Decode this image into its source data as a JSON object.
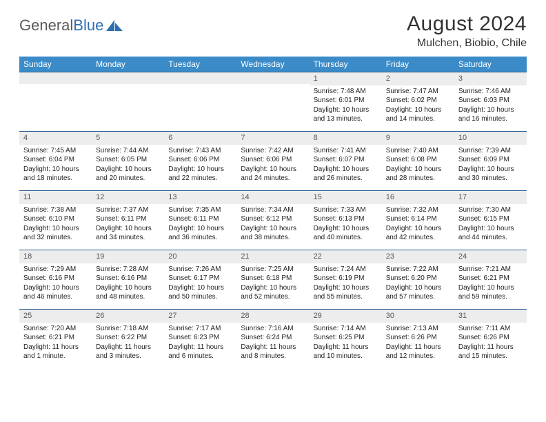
{
  "brand": {
    "name_gray": "General",
    "name_blue": "Blue"
  },
  "title": "August 2024",
  "location": "Mulchen, Biobio, Chile",
  "header_bg": "#3b8bc8",
  "header_text": "#ffffff",
  "daynum_bg": "#ededed",
  "rule_color": "#2a5d8f",
  "day_names": [
    "Sunday",
    "Monday",
    "Tuesday",
    "Wednesday",
    "Thursday",
    "Friday",
    "Saturday"
  ],
  "weeks": [
    [
      null,
      null,
      null,
      null,
      {
        "n": "1",
        "sr": "Sunrise: 7:48 AM",
        "ss": "Sunset: 6:01 PM",
        "d1": "Daylight: 10 hours",
        "d2": "and 13 minutes."
      },
      {
        "n": "2",
        "sr": "Sunrise: 7:47 AM",
        "ss": "Sunset: 6:02 PM",
        "d1": "Daylight: 10 hours",
        "d2": "and 14 minutes."
      },
      {
        "n": "3",
        "sr": "Sunrise: 7:46 AM",
        "ss": "Sunset: 6:03 PM",
        "d1": "Daylight: 10 hours",
        "d2": "and 16 minutes."
      }
    ],
    [
      {
        "n": "4",
        "sr": "Sunrise: 7:45 AM",
        "ss": "Sunset: 6:04 PM",
        "d1": "Daylight: 10 hours",
        "d2": "and 18 minutes."
      },
      {
        "n": "5",
        "sr": "Sunrise: 7:44 AM",
        "ss": "Sunset: 6:05 PM",
        "d1": "Daylight: 10 hours",
        "d2": "and 20 minutes."
      },
      {
        "n": "6",
        "sr": "Sunrise: 7:43 AM",
        "ss": "Sunset: 6:06 PM",
        "d1": "Daylight: 10 hours",
        "d2": "and 22 minutes."
      },
      {
        "n": "7",
        "sr": "Sunrise: 7:42 AM",
        "ss": "Sunset: 6:06 PM",
        "d1": "Daylight: 10 hours",
        "d2": "and 24 minutes."
      },
      {
        "n": "8",
        "sr": "Sunrise: 7:41 AM",
        "ss": "Sunset: 6:07 PM",
        "d1": "Daylight: 10 hours",
        "d2": "and 26 minutes."
      },
      {
        "n": "9",
        "sr": "Sunrise: 7:40 AM",
        "ss": "Sunset: 6:08 PM",
        "d1": "Daylight: 10 hours",
        "d2": "and 28 minutes."
      },
      {
        "n": "10",
        "sr": "Sunrise: 7:39 AM",
        "ss": "Sunset: 6:09 PM",
        "d1": "Daylight: 10 hours",
        "d2": "and 30 minutes."
      }
    ],
    [
      {
        "n": "11",
        "sr": "Sunrise: 7:38 AM",
        "ss": "Sunset: 6:10 PM",
        "d1": "Daylight: 10 hours",
        "d2": "and 32 minutes."
      },
      {
        "n": "12",
        "sr": "Sunrise: 7:37 AM",
        "ss": "Sunset: 6:11 PM",
        "d1": "Daylight: 10 hours",
        "d2": "and 34 minutes."
      },
      {
        "n": "13",
        "sr": "Sunrise: 7:35 AM",
        "ss": "Sunset: 6:11 PM",
        "d1": "Daylight: 10 hours",
        "d2": "and 36 minutes."
      },
      {
        "n": "14",
        "sr": "Sunrise: 7:34 AM",
        "ss": "Sunset: 6:12 PM",
        "d1": "Daylight: 10 hours",
        "d2": "and 38 minutes."
      },
      {
        "n": "15",
        "sr": "Sunrise: 7:33 AM",
        "ss": "Sunset: 6:13 PM",
        "d1": "Daylight: 10 hours",
        "d2": "and 40 minutes."
      },
      {
        "n": "16",
        "sr": "Sunrise: 7:32 AM",
        "ss": "Sunset: 6:14 PM",
        "d1": "Daylight: 10 hours",
        "d2": "and 42 minutes."
      },
      {
        "n": "17",
        "sr": "Sunrise: 7:30 AM",
        "ss": "Sunset: 6:15 PM",
        "d1": "Daylight: 10 hours",
        "d2": "and 44 minutes."
      }
    ],
    [
      {
        "n": "18",
        "sr": "Sunrise: 7:29 AM",
        "ss": "Sunset: 6:16 PM",
        "d1": "Daylight: 10 hours",
        "d2": "and 46 minutes."
      },
      {
        "n": "19",
        "sr": "Sunrise: 7:28 AM",
        "ss": "Sunset: 6:16 PM",
        "d1": "Daylight: 10 hours",
        "d2": "and 48 minutes."
      },
      {
        "n": "20",
        "sr": "Sunrise: 7:26 AM",
        "ss": "Sunset: 6:17 PM",
        "d1": "Daylight: 10 hours",
        "d2": "and 50 minutes."
      },
      {
        "n": "21",
        "sr": "Sunrise: 7:25 AM",
        "ss": "Sunset: 6:18 PM",
        "d1": "Daylight: 10 hours",
        "d2": "and 52 minutes."
      },
      {
        "n": "22",
        "sr": "Sunrise: 7:24 AM",
        "ss": "Sunset: 6:19 PM",
        "d1": "Daylight: 10 hours",
        "d2": "and 55 minutes."
      },
      {
        "n": "23",
        "sr": "Sunrise: 7:22 AM",
        "ss": "Sunset: 6:20 PM",
        "d1": "Daylight: 10 hours",
        "d2": "and 57 minutes."
      },
      {
        "n": "24",
        "sr": "Sunrise: 7:21 AM",
        "ss": "Sunset: 6:21 PM",
        "d1": "Daylight: 10 hours",
        "d2": "and 59 minutes."
      }
    ],
    [
      {
        "n": "25",
        "sr": "Sunrise: 7:20 AM",
        "ss": "Sunset: 6:21 PM",
        "d1": "Daylight: 11 hours",
        "d2": "and 1 minute."
      },
      {
        "n": "26",
        "sr": "Sunrise: 7:18 AM",
        "ss": "Sunset: 6:22 PM",
        "d1": "Daylight: 11 hours",
        "d2": "and 3 minutes."
      },
      {
        "n": "27",
        "sr": "Sunrise: 7:17 AM",
        "ss": "Sunset: 6:23 PM",
        "d1": "Daylight: 11 hours",
        "d2": "and 6 minutes."
      },
      {
        "n": "28",
        "sr": "Sunrise: 7:16 AM",
        "ss": "Sunset: 6:24 PM",
        "d1": "Daylight: 11 hours",
        "d2": "and 8 minutes."
      },
      {
        "n": "29",
        "sr": "Sunrise: 7:14 AM",
        "ss": "Sunset: 6:25 PM",
        "d1": "Daylight: 11 hours",
        "d2": "and 10 minutes."
      },
      {
        "n": "30",
        "sr": "Sunrise: 7:13 AM",
        "ss": "Sunset: 6:26 PM",
        "d1": "Daylight: 11 hours",
        "d2": "and 12 minutes."
      },
      {
        "n": "31",
        "sr": "Sunrise: 7:11 AM",
        "ss": "Sunset: 6:26 PM",
        "d1": "Daylight: 11 hours",
        "d2": "and 15 minutes."
      }
    ]
  ]
}
